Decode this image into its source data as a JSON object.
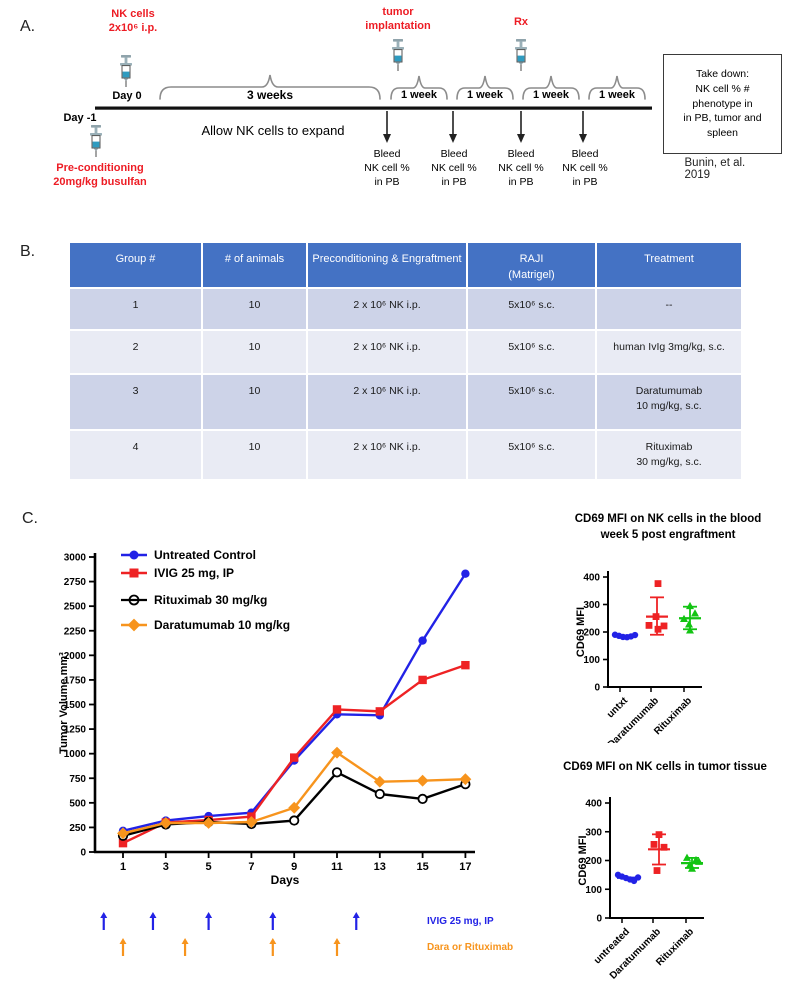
{
  "panel_labels": {
    "a": "A.",
    "b": "B.",
    "c": "C."
  },
  "timeline": {
    "accent_red": "#ed1c24",
    "nk_cells_label": "NK cells\n2x10⁶ i.p.",
    "day0_label": "Day 0",
    "day_minus1_label": "Day -1",
    "preconditioning_label": "Pre-conditioning\n20mg/kg busulfan",
    "three_weeks_label": "3 weeks",
    "expand_label": "Allow NK cells to expand",
    "week_labels": [
      "1 week",
      "1 week",
      "1 week",
      "1 week"
    ],
    "tumor_implantation_label": "tumor\nimplantation",
    "rx_label": "Rx",
    "bleed_labels": [
      "Bleed\nNK cell %\nin PB",
      "Bleed\nNK cell %\nin PB",
      "Bleed\nNK cell %\nin PB",
      "Bleed\nNK cell %\nin PB"
    ],
    "takedown_text": "Take down:\nNK cell % #\nphenotype in\nin PB, tumor and\nspleen",
    "citation": "Bunin, et al. 2019"
  },
  "table": {
    "header_bg": "#4472c4",
    "header_fg": "#ffffff",
    "row_bg_dark": "#cdd3e8",
    "row_bg_light": "#e9ebf4",
    "headers": [
      "Group #",
      "# of animals",
      "Preconditioning & Engraftment",
      "RAJI\n(Matrigel)",
      "Treatment"
    ],
    "rows": [
      [
        "1",
        "10",
        "2 x 10⁶ NK i.p.",
        "5x10⁶ s.c.",
        "--"
      ],
      [
        "2",
        "10",
        "2 x 10⁶  NK i.p.",
        "5x10⁶ s.c.",
        "human IvIg 3mg/kg, s.c."
      ],
      [
        "3",
        "10",
        "2 x 10⁶  NK i.p.",
        "5x10⁶ s.c.",
        "Daratumumab\n10 mg/kg, s.c."
      ],
      [
        "4",
        "10",
        "2 x 10⁶  NK i.p.",
        "5x10⁶ s.c.",
        "Rituximab\n30 mg/kg, s.c."
      ]
    ]
  },
  "chart_data": [
    {
      "type": "line",
      "title": "",
      "xlabel": "Days",
      "ylabel": "Tumor Volume mm³",
      "x": [
        1,
        3,
        5,
        7,
        9,
        11,
        13,
        15,
        17
      ],
      "xlim": [
        1,
        17
      ],
      "ylim": [
        0,
        3000
      ],
      "ytick_step": 250,
      "grid": false,
      "legend_position": "top-left",
      "series": [
        {
          "name": "Untreated Control",
          "color": "#2222e6",
          "marker": "circle",
          "values": [
            215,
            320,
            365,
            400,
            930,
            1400,
            1390,
            2150,
            2830
          ]
        },
        {
          "name": "IVIG 25 mg, IP",
          "color": "#ee2224",
          "marker": "square",
          "values": [
            90,
            300,
            325,
            360,
            960,
            1450,
            1430,
            1750,
            1900
          ]
        },
        {
          "name": "Rituximab 30 mg/kg",
          "color": "#000000",
          "marker": "circle-open",
          "values": [
            165,
            280,
            305,
            285,
            320,
            810,
            590,
            540,
            690
          ]
        },
        {
          "name": "Daratumumab 10 mg/kg",
          "color": "#f7941d",
          "marker": "diamond",
          "values": [
            190,
            295,
            295,
            305,
            450,
            1010,
            715,
            725,
            740
          ]
        }
      ],
      "dose_arrows": [
        {
          "label": "IVIG 25 mg, IP",
          "color": "#2222e6",
          "days": [
            0.1,
            2.4,
            5,
            8,
            11.9
          ]
        },
        {
          "label": "Dara or Rituximab",
          "color": "#f7941d",
          "days": [
            1,
            3.9,
            8,
            11
          ]
        }
      ]
    },
    {
      "type": "scatter",
      "title": "CD69 MFI on NK cells in the blood\nweek 5 post engraftment",
      "ylabel": "CD69 MFI",
      "ylim": [
        0,
        400
      ],
      "ytick_step": 100,
      "groups": [
        {
          "label": "untxt",
          "color": "#2222e6",
          "marker": "circle",
          "mean": 185,
          "points": [
            190,
            186,
            182,
            181,
            184,
            189
          ],
          "dx": [
            -11,
            -7,
            -3,
            1,
            5,
            9
          ]
        },
        {
          "label": "Daratumumab",
          "color": "#ee2224",
          "marker": "square",
          "mean": 256,
          "err_low": 190,
          "err_high": 326,
          "points": [
            376,
            256,
            224,
            210,
            222
          ],
          "dx": [
            1,
            -1,
            -8,
            1,
            7
          ]
        },
        {
          "label": "Rituximab",
          "color": "#12c412",
          "marker": "triangle",
          "mean": 250,
          "err_low": 210,
          "err_high": 292,
          "points": [
            295,
            268,
            248,
            228,
            206
          ],
          "dx": [
            0,
            5,
            -6,
            -1,
            0
          ]
        }
      ]
    },
    {
      "type": "scatter",
      "title": "CD69 MFI on NK cells in tumor tissue",
      "ylabel": "CD69 MFI",
      "ylim": [
        0,
        400
      ],
      "ytick_step": 100,
      "groups": [
        {
          "label": "untreated",
          "color": "#2222e6",
          "marker": "circle",
          "mean": 140,
          "points": [
            150,
            144,
            139,
            134,
            129,
            141
          ],
          "dx": [
            -10,
            -6,
            -2,
            2,
            6,
            10
          ]
        },
        {
          "label": "Daratumumab",
          "color": "#ee2224",
          "marker": "square",
          "mean": 239,
          "err_low": 186,
          "err_high": 291,
          "points": [
            290,
            256,
            246,
            165
          ],
          "dx": [
            0,
            -5,
            5,
            -2
          ]
        },
        {
          "label": "Rituximab",
          "color": "#12c412",
          "marker": "triangle",
          "mean": 191,
          "err_low": 174,
          "err_high": 209,
          "points": [
            210,
            202,
            196,
            186,
            172
          ],
          "dx": [
            -5,
            4,
            7,
            -2,
            0
          ]
        }
      ]
    }
  ]
}
